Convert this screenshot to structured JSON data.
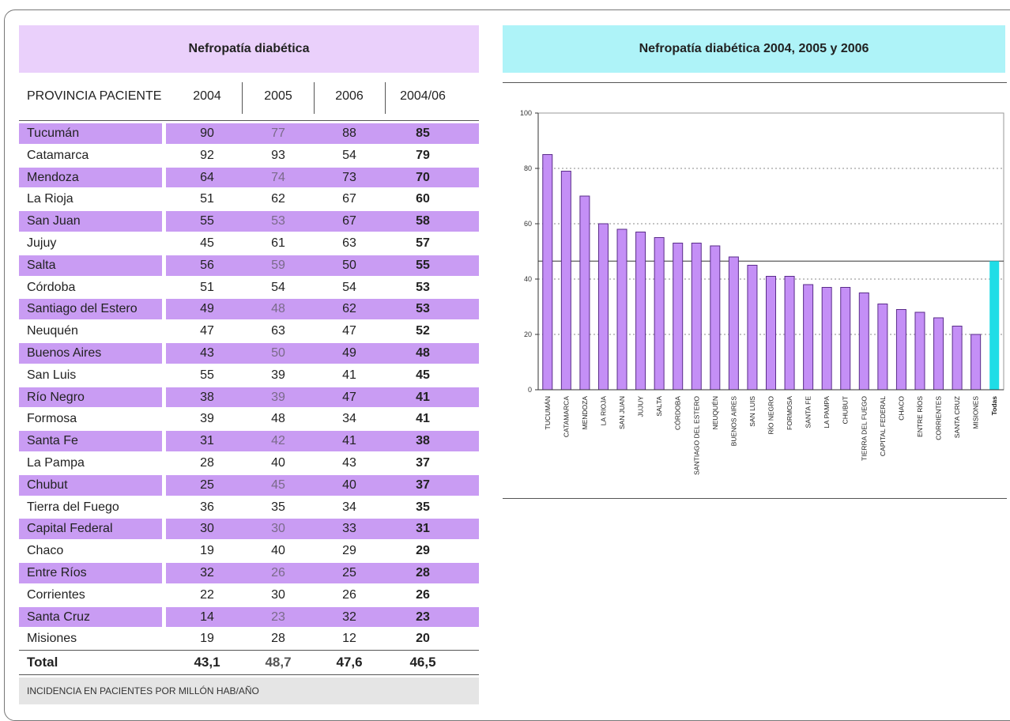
{
  "table": {
    "title": "Nefropatía diabética",
    "columns": [
      "PROVINCIA PACIENTE",
      "2004",
      "2005",
      "2006",
      "2004/06"
    ],
    "rows": [
      [
        "Tucumán",
        "90",
        "77",
        "88",
        "85"
      ],
      [
        "Catamarca",
        "92",
        "93",
        "54",
        "79"
      ],
      [
        "Mendoza",
        "64",
        "74",
        "73",
        "70"
      ],
      [
        "La Rioja",
        "51",
        "62",
        "67",
        "60"
      ],
      [
        "San Juan",
        "55",
        "53",
        "67",
        "58"
      ],
      [
        "Jujuy",
        "45",
        "61",
        "63",
        "57"
      ],
      [
        "Salta",
        "56",
        "59",
        "50",
        "55"
      ],
      [
        "Córdoba",
        "51",
        "54",
        "54",
        "53"
      ],
      [
        "Santiago del Estero",
        "49",
        "48",
        "62",
        "53"
      ],
      [
        "Neuquén",
        "47",
        "63",
        "47",
        "52"
      ],
      [
        "Buenos Aires",
        "43",
        "50",
        "49",
        "48"
      ],
      [
        "San Luis",
        "55",
        "39",
        "41",
        "45"
      ],
      [
        "Río Negro",
        "38",
        "39",
        "47",
        "41"
      ],
      [
        "Formosa",
        "39",
        "48",
        "34",
        "41"
      ],
      [
        "Santa Fe",
        "31",
        "42",
        "41",
        "38"
      ],
      [
        "La Pampa",
        "28",
        "40",
        "43",
        "37"
      ],
      [
        "Chubut",
        "25",
        "45",
        "40",
        "37"
      ],
      [
        "Tierra del Fuego",
        "36",
        "35",
        "34",
        "35"
      ],
      [
        "Capital Federal",
        "30",
        "30",
        "33",
        "31"
      ],
      [
        "Chaco",
        "19",
        "40",
        "29",
        "29"
      ],
      [
        "Entre Ríos",
        "32",
        "26",
        "25",
        "28"
      ],
      [
        "Corrientes",
        "22",
        "30",
        "26",
        "26"
      ],
      [
        "Santa Cruz",
        "14",
        "23",
        "32",
        "23"
      ],
      [
        "Misiones",
        "19",
        "28",
        "12",
        "20"
      ]
    ],
    "total": [
      "Total",
      "43,1",
      "48,7",
      "47,6",
      "46,5"
    ],
    "footnote": "INCIDENCIA EN PACIENTES POR MILLÓN HAB/AÑO"
  },
  "chart_data": {
    "type": "bar",
    "title": "Nefropatía diabética 2004, 2005 y 2006",
    "categories": [
      "TUCUMÁN",
      "CATAMARCA",
      "MENDOZA",
      "LA RIOJA",
      "SAN JUAN",
      "JUJUY",
      "SALTA",
      "CÓRDOBA",
      "SANTIAGO DEL ESTERO",
      "NEUQUÉN",
      "BUENOS AIRES",
      "SAN LUIS",
      "RÍO NEGRO",
      "FORMOSA",
      "SANTA FE",
      "LA PAMPA",
      "CHUBUT",
      "TIERRA DEL FUEGO",
      "CAPITAL FEDERAL",
      "CHACO",
      "ENTRE RÍOS",
      "CORRIENTES",
      "SANTA CRUZ",
      "MISIONES",
      "Todas"
    ],
    "values": [
      85,
      79,
      70,
      60,
      58,
      57,
      55,
      53,
      53,
      52,
      48,
      45,
      41,
      41,
      38,
      37,
      37,
      35,
      31,
      29,
      28,
      26,
      23,
      20,
      46.5
    ],
    "colors": [
      "#c48ff6",
      "#c48ff6",
      "#c48ff6",
      "#c48ff6",
      "#c48ff6",
      "#c48ff6",
      "#c48ff6",
      "#c48ff6",
      "#c48ff6",
      "#c48ff6",
      "#c48ff6",
      "#c48ff6",
      "#c48ff6",
      "#c48ff6",
      "#c48ff6",
      "#c48ff6",
      "#c48ff6",
      "#c48ff6",
      "#c48ff6",
      "#c48ff6",
      "#c48ff6",
      "#c48ff6",
      "#c48ff6",
      "#c48ff6",
      "#1fdde6"
    ],
    "ylim": [
      0,
      100
    ],
    "yticks": [
      0,
      20,
      40,
      60,
      80,
      100
    ],
    "grid": true
  }
}
